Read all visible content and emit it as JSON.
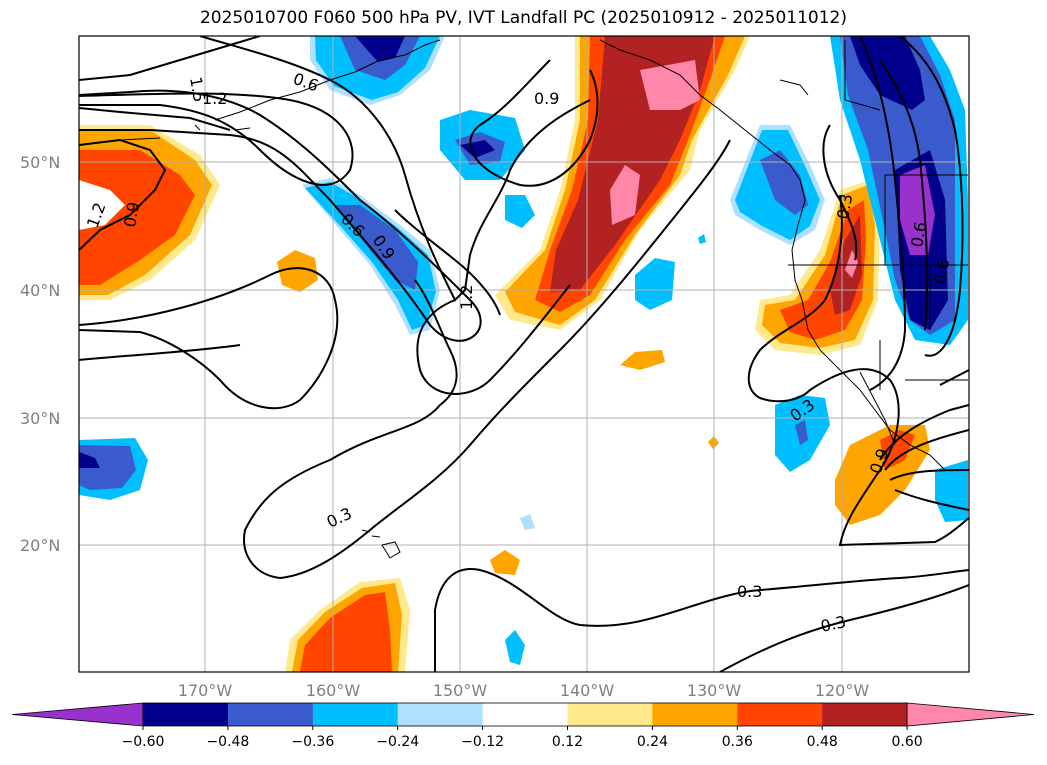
{
  "title": "2025010700 F060 500 hPa PV, IVT Landfall PC (2025010912 - 2025011012)",
  "map": {
    "lat_labels": [
      "50°N",
      "40°N",
      "30°N",
      "20°N"
    ],
    "lon_labels": [
      "170°W",
      "160°W",
      "150°W",
      "140°W",
      "130°W",
      "120°W"
    ],
    "contour_labels": [
      "1.5",
      "1.2",
      "0.6",
      "0.9",
      "1.2",
      "0.9",
      "0.6",
      "0.9",
      "1.2",
      "0.3",
      "0.3",
      "0.3",
      "0.3",
      "0.9",
      "0.3",
      "0.6",
      "0.6"
    ]
  },
  "colorbar": {
    "ticks": [
      "−0.60",
      "−0.48",
      "−0.36",
      "−0.24",
      "−0.12",
      "0.12",
      "0.24",
      "0.36",
      "0.48",
      "0.60"
    ],
    "colors": [
      "#9932CC",
      "#00008B",
      "#3A5BCB",
      "#00BFFF",
      "#ADE1FF",
      "#FFFFFF",
      "#FFE98A",
      "#FFA500",
      "#FF4500",
      "#B22222",
      "#FF88AA"
    ]
  }
}
